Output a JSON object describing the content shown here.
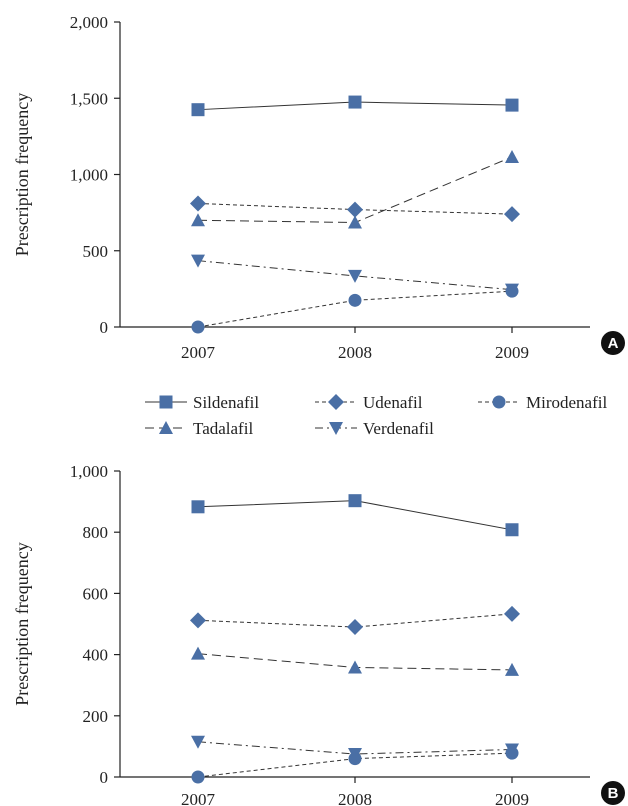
{
  "colors": {
    "marker": "#4a6fa5",
    "line": "#333333",
    "badge": "#111111"
  },
  "legend": {
    "items": [
      {
        "name": "Sildenafil",
        "marker": "square",
        "dash": "solid"
      },
      {
        "name": "Udenafil",
        "marker": "diamond",
        "dash": "dashed-short"
      },
      {
        "name": "Mirodenafil",
        "marker": "circle",
        "dash": "dashed-short"
      },
      {
        "name": "Tadalafil",
        "marker": "triangle-up",
        "dash": "dashed-long"
      },
      {
        "name": "Verdenafil",
        "marker": "triangle-down",
        "dash": "dashdot"
      }
    ]
  },
  "chart_data": [
    {
      "type": "line",
      "panel_label": "A",
      "title": "",
      "xlabel": "",
      "ylabel": "Prescription frequency",
      "categories": [
        "2007",
        "2008",
        "2009"
      ],
      "ylim": [
        0,
        2000
      ],
      "yticks": [
        0,
        500,
        1000,
        1500,
        2000
      ],
      "ytick_labels": [
        "0",
        "500",
        "1,000",
        "1,500",
        "2,000"
      ],
      "grid": false,
      "series": [
        {
          "name": "Sildenafil",
          "values": [
            1425,
            1475,
            1455
          ]
        },
        {
          "name": "Udenafil",
          "values": [
            810,
            770,
            740
          ]
        },
        {
          "name": "Tadalafil",
          "values": [
            700,
            685,
            1115
          ]
        },
        {
          "name": "Verdenafil",
          "values": [
            435,
            335,
            245
          ]
        },
        {
          "name": "Mirodenafil",
          "values": [
            0,
            175,
            235
          ]
        }
      ]
    },
    {
      "type": "line",
      "panel_label": "B",
      "title": "",
      "xlabel": "",
      "ylabel": "Prescription frequency",
      "categories": [
        "2007",
        "2008",
        "2009"
      ],
      "ylim": [
        0,
        1000
      ],
      "yticks": [
        0,
        200,
        400,
        600,
        800,
        1000
      ],
      "ytick_labels": [
        "0",
        "200",
        "400",
        "600",
        "800",
        "1,000"
      ],
      "grid": false,
      "series": [
        {
          "name": "Sildenafil",
          "values": [
            883,
            903,
            808
          ]
        },
        {
          "name": "Udenafil",
          "values": [
            512,
            490,
            533
          ]
        },
        {
          "name": "Tadalafil",
          "values": [
            403,
            358,
            350
          ]
        },
        {
          "name": "Verdenafil",
          "values": [
            115,
            75,
            90
          ]
        },
        {
          "name": "Mirodenafil",
          "values": [
            0,
            60,
            78
          ]
        }
      ]
    }
  ]
}
